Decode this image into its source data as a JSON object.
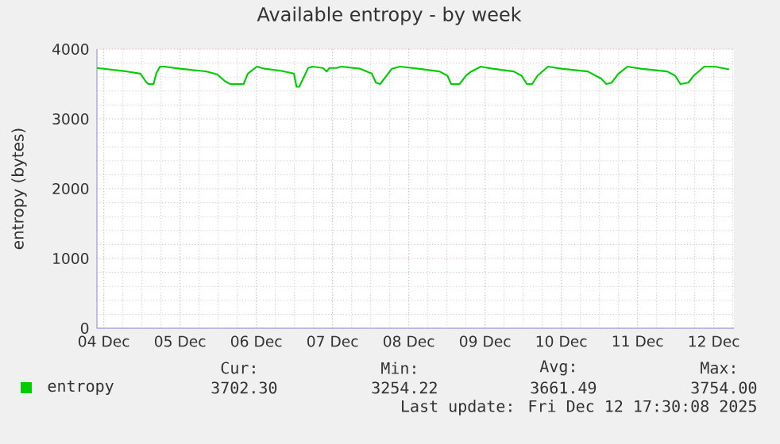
{
  "chart_data": {
    "type": "line",
    "title": "Available entropy - by week",
    "ylabel": "entropy (bytes)",
    "x": [
      "2025-12-04T09:50",
      "2025-12-04T19:20",
      "2025-12-04T23:30",
      "2025-12-05T01:10",
      "2025-12-05T02:00",
      "2025-12-05T03:40",
      "2025-12-05T04:30",
      "2025-12-05T05:40",
      "2025-12-05T07:00",
      "2025-12-05T12:00",
      "2025-12-05T20:20",
      "2025-12-05T23:40",
      "2025-12-06T02:10",
      "2025-12-06T03:50",
      "2025-12-06T08:00",
      "2025-12-06T09:20",
      "2025-12-06T12:10",
      "2025-12-06T14:40",
      "2025-12-06T19:40",
      "2025-12-06T23:50",
      "2025-12-07T00:40",
      "2025-12-07T01:30",
      "2025-12-07T03:10",
      "2025-12-07T04:20",
      "2025-12-07T05:40",
      "2025-12-07T09:00",
      "2025-12-07T10:10",
      "2025-12-07T11:00",
      "2025-12-07T13:10",
      "2025-12-07T14:50",
      "2025-12-07T20:40",
      "2025-12-08T00:20",
      "2025-12-08T01:40",
      "2025-12-08T03:00",
      "2025-12-08T05:00",
      "2025-12-08T06:40",
      "2025-12-08T09:10",
      "2025-12-08T15:00",
      "2025-12-08T21:40",
      "2025-12-09T00:10",
      "2025-12-09T01:20",
      "2025-12-09T04:00",
      "2025-12-09T06:00",
      "2025-12-09T07:40",
      "2025-12-09T10:40",
      "2025-12-09T14:20",
      "2025-12-09T21:00",
      "2025-12-09T23:30",
      "2025-12-10T01:10",
      "2025-12-10T02:50",
      "2025-12-10T04:30",
      "2025-12-10T07:50",
      "2025-12-10T12:00",
      "2025-12-10T20:20",
      "2025-12-11T00:30",
      "2025-12-11T02:10",
      "2025-12-11T03:50",
      "2025-12-11T06:00",
      "2025-12-11T08:50",
      "2025-12-11T13:00",
      "2025-12-11T21:20",
      "2025-12-11T23:50",
      "2025-12-12T01:30",
      "2025-12-12T04:00",
      "2025-12-12T05:40",
      "2025-12-12T09:00",
      "2025-12-12T12:20",
      "2025-12-12T16:50"
    ],
    "series": [
      {
        "name": "entropy",
        "color": "#00cc00",
        "values": [
          3730,
          3680,
          3650,
          3540,
          3500,
          3500,
          3650,
          3750,
          3750,
          3720,
          3680,
          3640,
          3540,
          3500,
          3500,
          3650,
          3750,
          3720,
          3690,
          3650,
          3460,
          3460,
          3620,
          3730,
          3750,
          3730,
          3680,
          3730,
          3730,
          3750,
          3720,
          3650,
          3520,
          3500,
          3620,
          3720,
          3750,
          3720,
          3680,
          3620,
          3500,
          3500,
          3620,
          3680,
          3750,
          3720,
          3680,
          3620,
          3500,
          3500,
          3620,
          3750,
          3720,
          3680,
          3580,
          3500,
          3520,
          3650,
          3750,
          3720,
          3680,
          3620,
          3500,
          3520,
          3620,
          3750,
          3750,
          3710
        ]
      }
    ],
    "xlim": [
      "2025-12-04T09:50",
      "2025-12-12T18:20"
    ],
    "xticks": [
      {
        "value": "2025-12-04T12:00",
        "label": "04 Dec"
      },
      {
        "value": "2025-12-05T12:00",
        "label": "05 Dec"
      },
      {
        "value": "2025-12-06T12:00",
        "label": "06 Dec"
      },
      {
        "value": "2025-12-07T12:00",
        "label": "07 Dec"
      },
      {
        "value": "2025-12-08T12:00",
        "label": "08 Dec"
      },
      {
        "value": "2025-12-09T12:00",
        "label": "09 Dec"
      },
      {
        "value": "2025-12-10T12:00",
        "label": "10 Dec"
      },
      {
        "value": "2025-12-11T12:00",
        "label": "11 Dec"
      },
      {
        "value": "2025-12-12T12:00",
        "label": "12 Dec"
      }
    ],
    "ylim": [
      0,
      4000
    ],
    "yticks": [
      0,
      1000,
      2000,
      3000,
      4000
    ],
    "grid": true,
    "legend": "bottom",
    "marker": "none",
    "line_style": "solid",
    "annotations": [
      "Cur:",
      "Min:",
      "Avg:",
      "Max:",
      "3702.30",
      "3254.22",
      "3661.49",
      "3754.00",
      "Last update: Fri Dec 12 17:30:08 2025"
    ]
  }
}
